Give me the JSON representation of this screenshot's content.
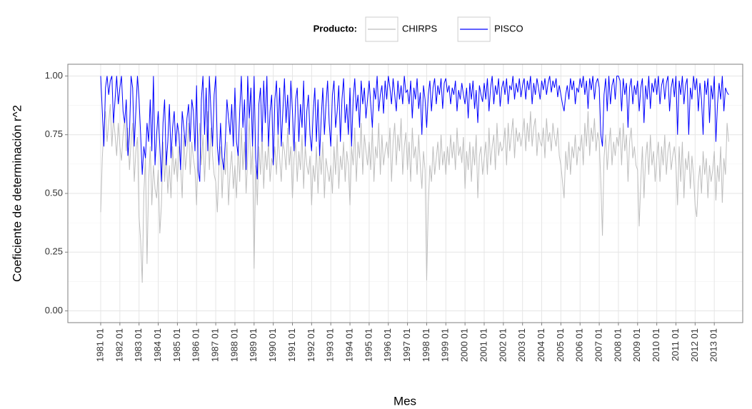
{
  "chart_data": {
    "type": "line",
    "legend_title": "Producto:",
    "legend_position": "top",
    "x_label": "Mes",
    "y_label": "Coeficiente de determinación r^2",
    "ylim": [
      -0.05,
      1.05
    ],
    "yticks": [
      {
        "value": 0,
        "label": "0.00"
      },
      {
        "value": 0.25,
        "label": "0.25"
      },
      {
        "value": 0.5,
        "label": "0.50"
      },
      {
        "value": 0.75,
        "label": "0.75"
      },
      {
        "value": 1,
        "label": "1.00"
      }
    ],
    "grid": true,
    "categories": [
      "1981 01",
      null,
      null,
      null,
      null,
      null,
      null,
      null,
      null,
      null,
      null,
      null,
      "1982 01",
      null,
      null,
      null,
      null,
      null,
      null,
      null,
      null,
      null,
      null,
      null,
      "1983 01",
      null,
      null,
      null,
      null,
      null,
      null,
      null,
      null,
      null,
      null,
      null,
      "1984 01",
      null,
      null,
      null,
      null,
      null,
      null,
      null,
      null,
      null,
      null,
      null,
      "1985 01",
      null,
      null,
      null,
      null,
      null,
      null,
      null,
      null,
      null,
      null,
      null,
      "1986 01",
      null,
      null,
      null,
      null,
      null,
      null,
      null,
      null,
      null,
      null,
      null,
      "1987 01",
      null,
      null,
      null,
      null,
      null,
      null,
      null,
      null,
      null,
      null,
      null,
      "1988 01",
      null,
      null,
      null,
      null,
      null,
      null,
      null,
      null,
      null,
      null,
      null,
      "1989 01",
      null,
      null,
      null,
      null,
      null,
      null,
      null,
      null,
      null,
      null,
      null,
      "1990 01",
      null,
      null,
      null,
      null,
      null,
      null,
      null,
      null,
      null,
      null,
      null,
      "1991 01",
      null,
      null,
      null,
      null,
      null,
      null,
      null,
      null,
      null,
      null,
      null,
      "1992 01",
      null,
      null,
      null,
      null,
      null,
      null,
      null,
      null,
      null,
      null,
      null,
      "1993 01",
      null,
      null,
      null,
      null,
      null,
      null,
      null,
      null,
      null,
      null,
      null,
      "1994 01",
      null,
      null,
      null,
      null,
      null,
      null,
      null,
      null,
      null,
      null,
      null,
      "1995 01",
      null,
      null,
      null,
      null,
      null,
      null,
      null,
      null,
      null,
      null,
      null,
      "1996 01",
      null,
      null,
      null,
      null,
      null,
      null,
      null,
      null,
      null,
      null,
      null,
      "1997 01",
      null,
      null,
      null,
      null,
      null,
      null,
      null,
      null,
      null,
      null,
      null,
      "1998 01",
      null,
      null,
      null,
      null,
      null,
      null,
      null,
      null,
      null,
      null,
      null,
      "1999 01",
      null,
      null,
      null,
      null,
      null,
      null,
      null,
      null,
      null,
      null,
      null,
      "2000 01",
      null,
      null,
      null,
      null,
      null,
      null,
      null,
      null,
      null,
      null,
      null,
      "2001 01",
      null,
      null,
      null,
      null,
      null,
      null,
      null,
      null,
      null,
      null,
      null,
      "2002 01",
      null,
      null,
      null,
      null,
      null,
      null,
      null,
      null,
      null,
      null,
      null,
      "2003 01",
      null,
      null,
      null,
      null,
      null,
      null,
      null,
      null,
      null,
      null,
      null,
      "2004 01",
      null,
      null,
      null,
      null,
      null,
      null,
      null,
      null,
      null,
      null,
      null,
      "2005 01",
      null,
      null,
      null,
      null,
      null,
      null,
      null,
      null,
      null,
      null,
      null,
      "2006 01",
      null,
      null,
      null,
      null,
      null,
      null,
      null,
      null,
      null,
      null,
      null,
      "2007 01",
      null,
      null,
      null,
      null,
      null,
      null,
      null,
      null,
      null,
      null,
      null,
      "2008 01",
      null,
      null,
      null,
      null,
      null,
      null,
      null,
      null,
      null,
      null,
      null,
      "2009 01",
      null,
      null,
      null,
      null,
      null,
      null,
      null,
      null,
      null,
      null,
      null,
      "2010 01",
      null,
      null,
      null,
      null,
      null,
      null,
      null,
      null,
      null,
      null,
      null,
      "2011 01",
      null,
      null,
      null,
      null,
      null,
      null,
      null,
      null,
      null,
      null,
      null,
      "2012 01",
      null,
      null,
      null,
      null,
      null,
      null,
      null,
      null,
      null,
      null,
      null,
      "2013 01",
      null,
      null,
      null,
      null,
      null,
      null,
      null,
      null,
      null
    ],
    "series": [
      {
        "name": "CHIRPS",
        "color": "#bebebe",
        "values": [
          0.42,
          0.65,
          0.78,
          0.85,
          0.72,
          0.8,
          0.88,
          0.7,
          0.82,
          0.75,
          0.66,
          0.8,
          0.7,
          0.64,
          0.75,
          0.82,
          0.68,
          0.78,
          0.6,
          0.72,
          0.8,
          0.55,
          0.68,
          0.74,
          0.4,
          0.3,
          0.12,
          0.5,
          0.65,
          0.2,
          0.55,
          0.7,
          0.45,
          0.62,
          0.52,
          0.48,
          0.6,
          0.33,
          0.45,
          0.72,
          0.55,
          0.68,
          0.5,
          0.62,
          0.48,
          0.7,
          0.58,
          0.65,
          0.55,
          0.7,
          0.62,
          0.48,
          0.75,
          0.6,
          0.68,
          0.8,
          0.58,
          0.72,
          0.65,
          0.6,
          0.45,
          0.7,
          0.8,
          0.62,
          0.75,
          0.55,
          0.72,
          0.85,
          0.6,
          0.78,
          0.66,
          0.58,
          0.55,
          0.42,
          0.62,
          0.7,
          0.48,
          0.65,
          0.58,
          0.72,
          0.45,
          0.6,
          0.68,
          0.52,
          0.62,
          0.48,
          0.7,
          0.55,
          0.78,
          0.6,
          0.72,
          0.5,
          0.65,
          0.82,
          0.58,
          0.7,
          0.18,
          0.62,
          0.45,
          0.7,
          0.58,
          0.75,
          0.52,
          0.68,
          0.6,
          0.72,
          0.55,
          0.65,
          0.62,
          0.7,
          0.58,
          0.75,
          0.65,
          0.55,
          0.72,
          0.68,
          0.6,
          0.78,
          0.62,
          0.7,
          0.48,
          0.65,
          0.72,
          0.55,
          0.68,
          0.6,
          0.75,
          0.52,
          0.7,
          0.62,
          0.58,
          0.66,
          0.45,
          0.62,
          0.55,
          0.7,
          0.5,
          0.68,
          0.58,
          0.72,
          0.48,
          0.65,
          0.6,
          0.55,
          0.62,
          0.5,
          0.7,
          0.58,
          0.75,
          0.52,
          0.66,
          0.6,
          0.72,
          0.55,
          0.68,
          0.62,
          0.45,
          0.7,
          0.62,
          0.78,
          0.55,
          0.72,
          0.65,
          0.8,
          0.58,
          0.75,
          0.68,
          0.62,
          0.72,
          0.6,
          0.78,
          0.55,
          0.7,
          0.65,
          0.8,
          0.58,
          0.75,
          0.62,
          0.68,
          0.72,
          0.65,
          0.78,
          0.55,
          0.72,
          0.8,
          0.62,
          0.75,
          0.68,
          0.82,
          0.58,
          0.7,
          0.76,
          0.6,
          0.72,
          0.55,
          0.78,
          0.65,
          0.7,
          0.58,
          0.75,
          0.62,
          0.52,
          0.68,
          0.6,
          0.13,
          0.45,
          0.62,
          0.55,
          0.7,
          0.58,
          0.65,
          0.72,
          0.6,
          0.75,
          0.62,
          0.68,
          0.58,
          0.7,
          0.62,
          0.75,
          0.65,
          0.72,
          0.6,
          0.78,
          0.66,
          0.7,
          0.63,
          0.74,
          0.52,
          0.68,
          0.6,
          0.72,
          0.55,
          0.7,
          0.62,
          0.75,
          0.48,
          0.66,
          0.7,
          0.58,
          0.65,
          0.72,
          0.58,
          0.78,
          0.62,
          0.7,
          0.75,
          0.6,
          0.8,
          0.66,
          0.72,
          0.68,
          0.7,
          0.78,
          0.62,
          0.8,
          0.68,
          0.75,
          0.82,
          0.65,
          0.78,
          0.72,
          0.76,
          0.7,
          0.75,
          0.82,
          0.68,
          0.8,
          0.72,
          0.85,
          0.7,
          0.78,
          0.82,
          0.66,
          0.76,
          0.72,
          0.7,
          0.78,
          0.65,
          0.82,
          0.72,
          0.76,
          0.68,
          0.8,
          0.74,
          0.7,
          0.78,
          0.66,
          0.62,
          0.55,
          0.48,
          0.68,
          0.6,
          0.72,
          0.58,
          0.7,
          0.65,
          0.75,
          0.62,
          0.7,
          0.68,
          0.75,
          0.62,
          0.8,
          0.7,
          0.85,
          0.66,
          0.78,
          0.72,
          0.82,
          0.68,
          0.76,
          0.72,
          0.55,
          0.32,
          0.65,
          0.75,
          0.6,
          0.7,
          0.78,
          0.62,
          0.72,
          0.66,
          0.74,
          0.7,
          0.78,
          0.62,
          0.8,
          0.68,
          0.75,
          0.55,
          0.72,
          0.78,
          0.65,
          0.7,
          0.62,
          0.6,
          0.36,
          0.55,
          0.7,
          0.48,
          0.65,
          0.72,
          0.58,
          0.75,
          0.62,
          0.68,
          0.55,
          0.65,
          0.72,
          0.55,
          0.7,
          0.62,
          0.75,
          0.58,
          0.68,
          0.72,
          0.6,
          0.66,
          0.7,
          0.62,
          0.45,
          0.7,
          0.55,
          0.72,
          0.48,
          0.65,
          0.6,
          0.68,
          0.52,
          0.66,
          0.58,
          0.45,
          0.4,
          0.55,
          0.62,
          0.5,
          0.68,
          0.58,
          0.65,
          0.48,
          0.62,
          0.55,
          0.6,
          0.68,
          0.47,
          0.62,
          0.55,
          0.7,
          0.46,
          0.65,
          0.58,
          0.8,
          0.72
        ]
      },
      {
        "name": "PISCO",
        "color": "#0000ff",
        "values": [
          1.0,
          0.85,
          0.7,
          0.95,
          1.0,
          0.92,
          0.98,
          1.0,
          0.8,
          0.9,
          1.0,
          0.88,
          0.95,
          1.0,
          0.85,
          0.8,
          0.9,
          0.66,
          0.75,
          1.0,
          0.95,
          0.7,
          0.85,
          1.0,
          0.9,
          0.75,
          0.58,
          0.7,
          0.65,
          0.8,
          0.72,
          0.9,
          0.68,
          1.0,
          0.62,
          0.75,
          0.85,
          0.7,
          0.55,
          0.8,
          0.9,
          0.62,
          0.72,
          0.88,
          0.65,
          0.78,
          0.85,
          0.7,
          0.8,
          0.75,
          0.6,
          0.85,
          0.78,
          0.7,
          0.82,
          0.88,
          0.72,
          0.9,
          0.85,
          0.68,
          0.96,
          0.6,
          0.55,
          0.9,
          1.0,
          0.75,
          0.95,
          0.68,
          1.0,
          0.85,
          0.7,
          0.92,
          1.0,
          0.7,
          0.62,
          0.8,
          0.65,
          0.6,
          0.72,
          0.9,
          0.82,
          0.75,
          0.88,
          0.7,
          0.95,
          0.72,
          0.66,
          0.85,
          1.0,
          0.78,
          0.9,
          0.6,
          1.0,
          0.82,
          0.95,
          0.7,
          1.0,
          0.65,
          0.56,
          0.88,
          0.95,
          0.72,
          0.98,
          0.8,
          1.0,
          0.7,
          0.85,
          0.92,
          0.62,
          0.9,
          0.98,
          0.75,
          0.95,
          0.7,
          0.85,
          0.99,
          0.8,
          0.92,
          0.75,
          0.98,
          0.85,
          0.68,
          0.9,
          0.95,
          0.72,
          0.88,
          0.78,
          0.98,
          0.7,
          0.85,
          0.92,
          0.75,
          0.68,
          0.85,
          0.95,
          0.72,
          0.9,
          0.66,
          0.82,
          0.95,
          0.75,
          0.88,
          0.98,
          0.8,
          0.7,
          0.92,
          0.98,
          0.78,
          0.85,
          0.96,
          0.72,
          0.9,
          0.99,
          0.8,
          0.88,
          0.75,
          0.95,
          0.7,
          0.9,
          0.99,
          0.85,
          0.92,
          0.78,
          0.98,
          0.88,
          0.95,
          0.82,
          0.9,
          0.98,
          0.88,
          0.78,
          0.95,
          0.9,
          1.0,
          0.85,
          0.92,
          0.96,
          0.84,
          0.98,
          0.9,
          1.0,
          0.95,
          0.88,
          0.99,
          0.92,
          0.85,
          0.98,
          0.9,
          0.96,
          0.88,
          1.0,
          0.93,
          0.94,
          0.88,
          0.98,
          0.82,
          0.95,
          0.9,
          0.99,
          0.86,
          0.93,
          0.75,
          0.96,
          0.9,
          0.78,
          0.92,
          0.98,
          0.85,
          0.95,
          0.99,
          0.88,
          0.96,
          0.92,
          0.99,
          0.86,
          0.97,
          0.99,
          0.93,
          0.96,
          0.88,
          0.95,
          0.92,
          0.98,
          0.85,
          0.94,
          0.9,
          0.97,
          0.92,
          0.88,
          0.95,
          0.82,
          0.97,
          0.9,
          0.98,
          0.86,
          0.94,
          0.8,
          0.96,
          0.92,
          0.89,
          0.97,
          0.9,
          0.99,
          0.85,
          0.95,
          1.0,
          0.88,
          0.96,
          0.92,
          0.99,
          0.87,
          0.95,
          0.98,
          0.92,
          0.99,
          0.88,
          0.96,
          0.94,
          1.0,
          0.9,
          0.97,
          0.93,
          0.99,
          0.91,
          0.96,
          0.99,
          0.9,
          0.98,
          0.94,
          1.0,
          0.88,
          0.97,
          0.92,
          0.99,
          0.95,
          0.9,
          0.98,
          0.94,
          0.99,
          0.92,
          0.97,
          1.0,
          0.93,
          0.98,
          0.95,
          0.99,
          0.91,
          0.96,
          0.92,
          0.88,
          0.85,
          0.92,
          0.96,
          0.9,
          0.99,
          0.94,
          0.98,
          0.88,
          0.95,
          0.93,
          0.99,
          0.95,
          1.0,
          0.92,
          0.98,
          0.86,
          0.99,
          0.94,
          1.0,
          0.9,
          0.97,
          0.99,
          0.95,
          0.75,
          0.7,
          0.92,
          0.99,
          0.85,
          1.0,
          0.88,
          0.96,
          0.99,
          0.9,
          1.0,
          1.0,
          0.98,
          0.85,
          0.99,
          0.92,
          0.97,
          0.78,
          0.95,
          0.99,
          0.88,
          0.96,
          0.92,
          0.98,
          0.85,
          0.95,
          0.99,
          0.8,
          0.96,
          0.9,
          1.0,
          0.86,
          0.97,
          0.93,
          0.99,
          0.92,
          1.0,
          0.88,
          0.96,
          0.99,
          0.9,
          0.97,
          1.0,
          0.85,
          0.95,
          0.99,
          0.91,
          1.0,
          0.75,
          0.98,
          0.92,
          1.0,
          0.88,
          0.96,
          0.99,
          0.75,
          0.95,
          0.9,
          1.0,
          0.94,
          0.99,
          0.85,
          0.97,
          0.9,
          0.75,
          0.98,
          0.92,
          0.99,
          0.8,
          0.96,
          0.9,
          1.0,
          0.72,
          0.88,
          0.97,
          0.9,
          1.0,
          0.85,
          0.95,
          0.93,
          0.92
        ]
      }
    ]
  }
}
